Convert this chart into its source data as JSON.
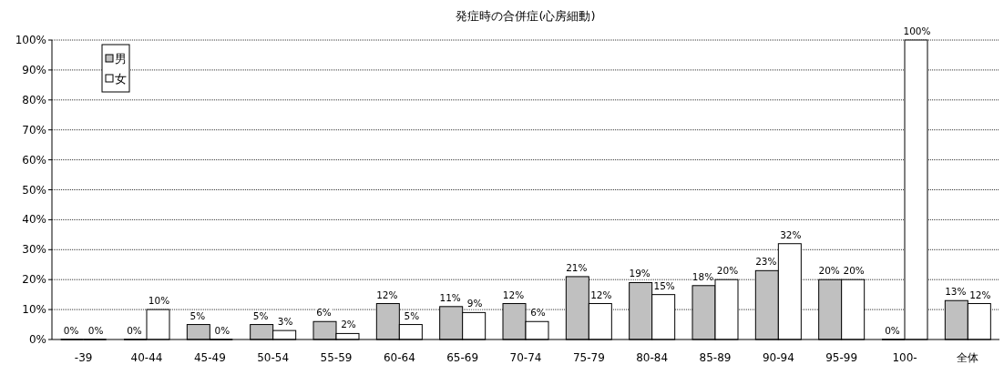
{
  "chart_data": {
    "type": "bar",
    "title": "発症時の合併症(心房細動)",
    "categories": [
      "-39",
      "40-44",
      "45-49",
      "50-54",
      "55-59",
      "60-64",
      "65-69",
      "70-74",
      "75-79",
      "80-84",
      "85-89",
      "90-94",
      "95-99",
      "100-",
      "全体"
    ],
    "series": [
      {
        "name": "男",
        "color": "#c0c0c0",
        "values": [
          0,
          0,
          5,
          5,
          6,
          12,
          11,
          12,
          21,
          19,
          18,
          23,
          20,
          0,
          13
        ],
        "value_labels": [
          "0%",
          "0%",
          "5%",
          "5%",
          "6%",
          "12%",
          "11%",
          "12%",
          "21%",
          "19%",
          "18%",
          "23%",
          "20%",
          "0%",
          "13%"
        ]
      },
      {
        "name": "女",
        "color": "#ffffff",
        "values": [
          0,
          10,
          0,
          3,
          2,
          5,
          9,
          6,
          12,
          15,
          20,
          32,
          20,
          100,
          12
        ],
        "value_labels": [
          "0%",
          "10%",
          "0%",
          "3%",
          "2%",
          "5%",
          "9%",
          "6%",
          "12%",
          "15%",
          "20%",
          "32%",
          "20%",
          "100%",
          "12%"
        ]
      }
    ],
    "ylim": [
      0,
      100
    ],
    "yticks": [
      {
        "value": 0,
        "label": "0%"
      },
      {
        "value": 10,
        "label": "10%"
      },
      {
        "value": 20,
        "label": "20%"
      },
      {
        "value": 30,
        "label": "30%"
      },
      {
        "value": 40,
        "label": "40%"
      },
      {
        "value": 50,
        "label": "50%"
      },
      {
        "value": 60,
        "label": "60%"
      },
      {
        "value": 70,
        "label": "70%"
      },
      {
        "value": 80,
        "label": "80%"
      },
      {
        "value": 90,
        "label": "90%"
      },
      {
        "value": 100,
        "label": "100%"
      }
    ],
    "grid": "y",
    "legend": "top left"
  }
}
